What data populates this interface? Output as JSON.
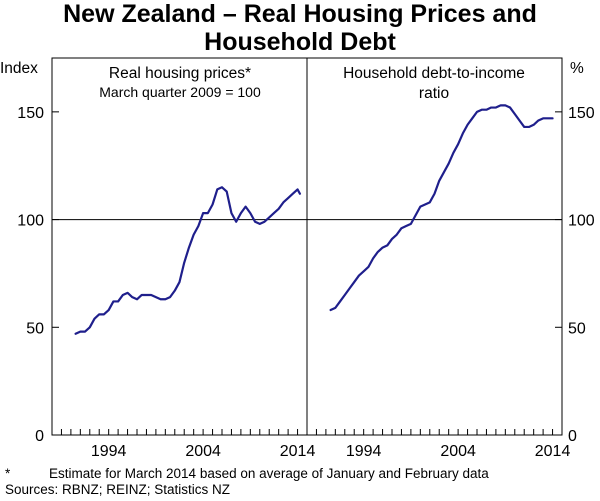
{
  "chart_data": {
    "type": "line",
    "title": "New Zealand – Real Housing Prices and Household Debt",
    "title_lines": [
      "New Zealand – Real Housing Prices and",
      "Household Debt"
    ],
    "left_unit": "Index",
    "right_unit": "%",
    "ylim": [
      0,
      175
    ],
    "yticks": [
      0,
      50,
      100,
      150
    ],
    "xlim": [
      1988,
      2015
    ],
    "xticks": [
      1994,
      2004,
      2014
    ],
    "grid": "horizontal line at 100",
    "line_color": "#1f1f8c",
    "panels": [
      {
        "title_lines": [
          "Real housing prices*"
        ],
        "subtitle": "March quarter 2009 = 100",
        "series": [
          {
            "name": "Real housing prices*",
            "x": [
              1990.5,
              1991.0,
              1991.5,
              1992.0,
              1992.5,
              1993.0,
              1993.5,
              1994.0,
              1994.5,
              1995.0,
              1995.5,
              1996.0,
              1996.5,
              1997.0,
              1997.5,
              1998.0,
              1998.5,
              1999.0,
              1999.5,
              2000.0,
              2000.5,
              2001.0,
              2001.5,
              2002.0,
              2002.5,
              2003.0,
              2003.5,
              2004.0,
              2004.5,
              2005.0,
              2005.5,
              2006.0,
              2006.5,
              2007.0,
              2007.5,
              2008.0,
              2008.5,
              2009.0,
              2009.5,
              2010.0,
              2010.5,
              2011.0,
              2011.5,
              2012.0,
              2012.5,
              2013.0,
              2013.5,
              2014.0,
              2014.25
            ],
            "values": [
              47,
              48,
              48,
              50,
              54,
              56,
              56,
              58,
              62,
              62,
              65,
              66,
              64,
              63,
              65,
              65,
              65,
              64,
              63,
              63,
              64,
              67,
              71,
              80,
              87,
              93,
              97,
              103,
              103,
              107,
              114,
              115,
              113,
              103,
              99,
              103,
              106,
              103,
              99,
              98,
              99,
              101,
              103,
              105,
              108,
              110,
              112,
              114,
              112
            ]
          }
        ]
      },
      {
        "title_lines": [
          "Household debt-to-income",
          "ratio"
        ],
        "series": [
          {
            "name": "Household debt-to-income ratio",
            "x": [
              1990.5,
              1991.0,
              1991.5,
              1992.0,
              1992.5,
              1993.0,
              1993.5,
              1994.0,
              1994.5,
              1995.0,
              1995.5,
              1996.0,
              1996.5,
              1997.0,
              1997.5,
              1998.0,
              1998.5,
              1999.0,
              1999.5,
              2000.0,
              2000.5,
              2001.0,
              2001.5,
              2002.0,
              2002.5,
              2003.0,
              2003.5,
              2004.0,
              2004.5,
              2005.0,
              2005.5,
              2006.0,
              2006.5,
              2007.0,
              2007.5,
              2008.0,
              2008.5,
              2009.0,
              2009.5,
              2010.0,
              2010.5,
              2011.0,
              2011.5,
              2012.0,
              2012.5,
              2013.0,
              2013.5,
              2014.0
            ],
            "values": [
              58,
              59,
              62,
              65,
              68,
              71,
              74,
              76,
              78,
              82,
              85,
              87,
              88,
              91,
              93,
              96,
              97,
              98,
              102,
              106,
              107,
              108,
              112,
              118,
              122,
              126,
              131,
              135,
              140,
              144,
              147,
              150,
              151,
              151,
              152,
              152,
              153,
              153,
              152,
              149,
              146,
              143,
              143,
              144,
              146,
              147,
              147,
              147
            ]
          }
        ]
      }
    ],
    "footnote": "Estimate for March 2014 based on average of January and February data",
    "footnote_marker": "*",
    "sources": "Sources: RBNZ; REINZ; Statistics NZ"
  }
}
